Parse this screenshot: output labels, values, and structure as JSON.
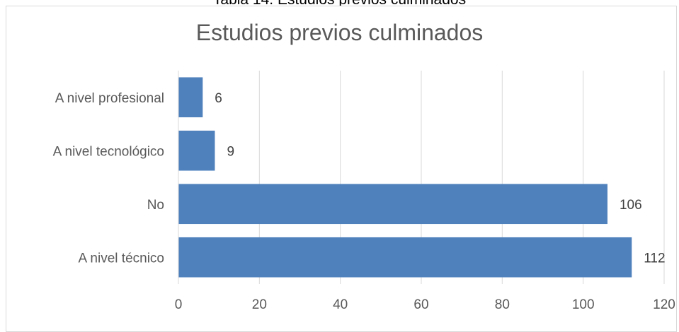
{
  "caption": "Tabla 14. Estudios previos culminados",
  "chart_data": {
    "type": "bar",
    "orientation": "horizontal",
    "title": "Estudios previos culminados",
    "categories": [
      "A nivel profesional",
      "A nivel tecnológico",
      "No",
      "A nivel técnico"
    ],
    "values": [
      6,
      9,
      106,
      112
    ],
    "xlim": [
      0,
      120
    ],
    "xticks": [
      0,
      20,
      40,
      60,
      80,
      100,
      120
    ],
    "grid": "vertical",
    "legend": "none",
    "bar_color": "#4f81bd"
  }
}
